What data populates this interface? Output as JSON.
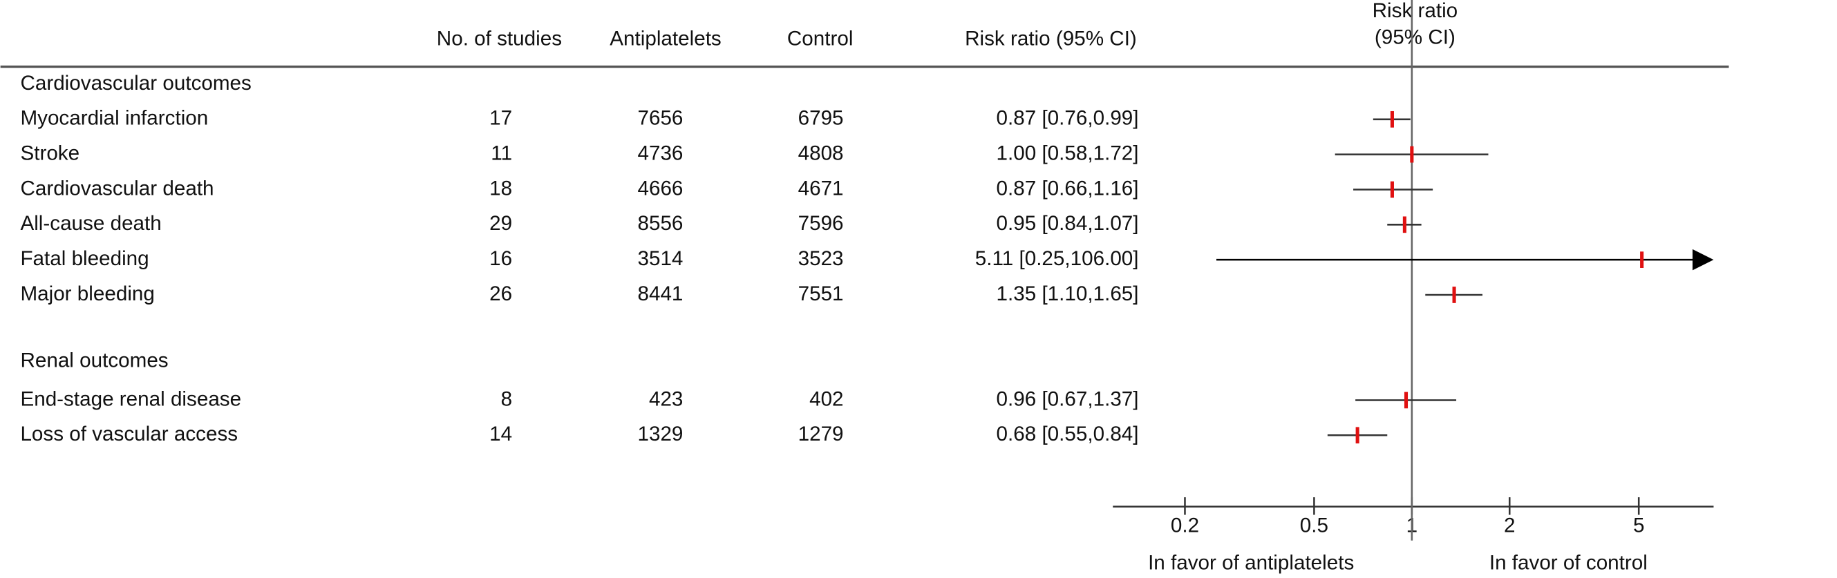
{
  "chart_data": {
    "type": "forest",
    "columns": [
      "No. of studies",
      "Antiplatelets",
      "Control",
      "Risk ratio (95% CI)"
    ],
    "plot_header": [
      "Risk ratio",
      "(95% CI)"
    ],
    "sections": [
      {
        "label": "Cardiovascular outcomes",
        "categories": [
          "Myocardial infarction",
          "Stroke",
          "Cardiovascular death",
          "All-cause death",
          "Fatal bleeding",
          "Major bleeding"
        ],
        "studies": [
          17,
          11,
          18,
          29,
          16,
          26
        ],
        "antiplatelets": [
          7656,
          4736,
          4666,
          8556,
          3514,
          8441
        ],
        "control": [
          6795,
          4808,
          4671,
          7596,
          3523,
          7551
        ],
        "values": [
          0.87,
          1.0,
          0.87,
          0.95,
          5.11,
          1.35
        ],
        "lower": [
          0.76,
          0.58,
          0.66,
          0.84,
          0.25,
          1.1
        ],
        "upper": [
          0.99,
          1.72,
          1.16,
          1.07,
          106.0,
          1.65
        ],
        "value_labels": [
          "0.87 [0.76,0.99]",
          "1.00 [0.58,1.72]",
          "0.87 [0.66,1.16]",
          "0.95 [0.84,1.07]",
          "5.11 [0.25,106.00]",
          "1.35 [1.10,1.65]"
        ]
      },
      {
        "label": "Renal outcomes",
        "categories": [
          "End-stage renal disease",
          "Loss of vascular access"
        ],
        "studies": [
          8,
          14
        ],
        "antiplatelets": [
          423,
          1329
        ],
        "control": [
          402,
          1279
        ],
        "values": [
          0.96,
          0.68
        ],
        "lower": [
          0.67,
          0.55
        ],
        "upper": [
          1.37,
          0.84
        ],
        "value_labels": [
          "0.96 [0.67,1.37]",
          "0.68 [0.55,0.84]"
        ]
      }
    ],
    "x_scale": "log",
    "xlim": [
      0.12,
      8.5
    ],
    "xticks": [
      0.2,
      0.5,
      1,
      2,
      5
    ],
    "reference_line": 1,
    "favor_labels": [
      "In favor of antiplatelets",
      "In favor of control"
    ],
    "marker_color": "#e01010",
    "ci_color": "#333333"
  }
}
